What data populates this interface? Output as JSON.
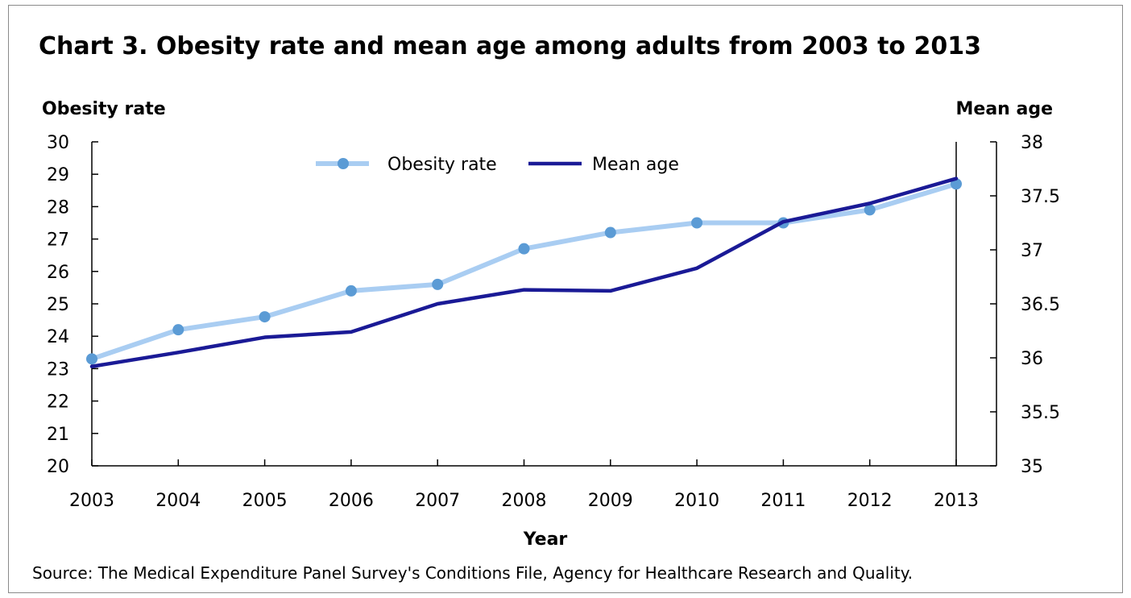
{
  "chart_data": {
    "type": "line",
    "title": "Chart 3. Obesity rate and mean age among adults from 2003 to 2013",
    "xlabel": "Year",
    "ylabel": "Obesity rate",
    "ylabel_right": "Mean age",
    "x": [
      "2003",
      "2004",
      "2005",
      "2006",
      "2007",
      "2008",
      "2009",
      "2010",
      "2011",
      "2012",
      "2013"
    ],
    "ylim": [
      20,
      30
    ],
    "yticks": [
      "20",
      "21",
      "22",
      "23",
      "24",
      "25",
      "26",
      "27",
      "28",
      "29",
      "30"
    ],
    "ylim_right": [
      35,
      38
    ],
    "yticks_right": [
      "35",
      "35.5",
      "36",
      "36.5",
      "37",
      "37.5",
      "38"
    ],
    "series": [
      {
        "name": "Obesity rate",
        "axis": "left",
        "color": "#a9cdf2",
        "marker_color": "#5b9bd5",
        "values": [
          23.3,
          24.2,
          24.6,
          25.4,
          25.6,
          26.7,
          27.2,
          27.5,
          27.5,
          27.9,
          28.7
        ]
      },
      {
        "name": "Mean age",
        "axis": "right",
        "color": "#1a1a96",
        "values": [
          35.92,
          36.05,
          36.19,
          36.24,
          36.5,
          36.63,
          36.62,
          36.83,
          37.26,
          37.43,
          37.66
        ]
      }
    ],
    "legend_position": "top-center",
    "grid": false,
    "source": "Source: The Medical Expenditure Panel Survey's Conditions File, Agency for Healthcare Research and Quality."
  }
}
